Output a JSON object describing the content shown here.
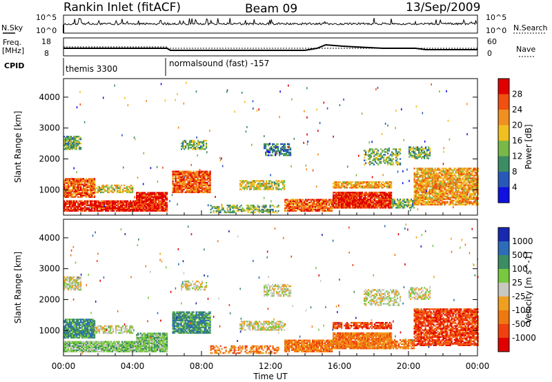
{
  "header": {
    "station": "Rankin Inlet (fitACF)",
    "beam": "Beam 09",
    "date": "13/Sep/2009"
  },
  "aux_panels": {
    "nsky_label": "N.Sky",
    "nsky_ticks": [
      "10^5",
      "10^0"
    ],
    "nsearch_label": "N.Search",
    "nsearch_ticks": [
      "10^5",
      "10^0"
    ],
    "freq_label_1": "Freq.",
    "freq_label_2": "[MHz]",
    "freq_ticks": [
      "18",
      "8"
    ],
    "nave_label": "Nave",
    "nave_ticks": [
      "60",
      "0"
    ],
    "cpid_label": "CPID",
    "cpid_segments": [
      {
        "start_hour": 0,
        "text": "themis 3300"
      },
      {
        "start_hour": 6,
        "text": "normalsound (fast) -157"
      }
    ]
  },
  "chart_data": [
    {
      "type": "heatmap",
      "panel": "power",
      "xlabel": "",
      "ylabel": "Slant Range [km]",
      "x_range_hours": [
        0,
        24
      ],
      "ylim": [
        180,
        4600
      ],
      "yticks": [
        1000,
        2000,
        3000,
        4000
      ],
      "colorbar_label": "Power [dB]",
      "colorbar_ticks": [
        4,
        8,
        12,
        16,
        20,
        24,
        28
      ],
      "colorbar_colors": [
        "#1010e0",
        "#2858b8",
        "#3c8c64",
        "#78b848",
        "#f0c020",
        "#f09020",
        "#f05010",
        "#e00000"
      ]
    },
    {
      "type": "heatmap",
      "panel": "velocity",
      "xlabel": "Time UT",
      "ylabel": "Slant Range [km]",
      "x_range_hours": [
        0,
        24
      ],
      "xtick_labels": [
        "00:00",
        "04:00",
        "08:00",
        "12:00",
        "16:00",
        "20:00",
        "00:00"
      ],
      "ylim": [
        180,
        4600
      ],
      "yticks": [
        1000,
        2000,
        3000,
        4000
      ],
      "colorbar_label": "Velocity [m s^-1]",
      "colorbar_ticks": [
        "1000",
        "500",
        "100",
        "25",
        "-25",
        "-100",
        "-500",
        "-1000"
      ],
      "colorbar_colors": [
        "#1828b0",
        "#2c6cb8",
        "#3c8c64",
        "#78c840",
        "#c8c8c0",
        "#f0a020",
        "#f07810",
        "#f04010",
        "#e00000"
      ]
    }
  ]
}
